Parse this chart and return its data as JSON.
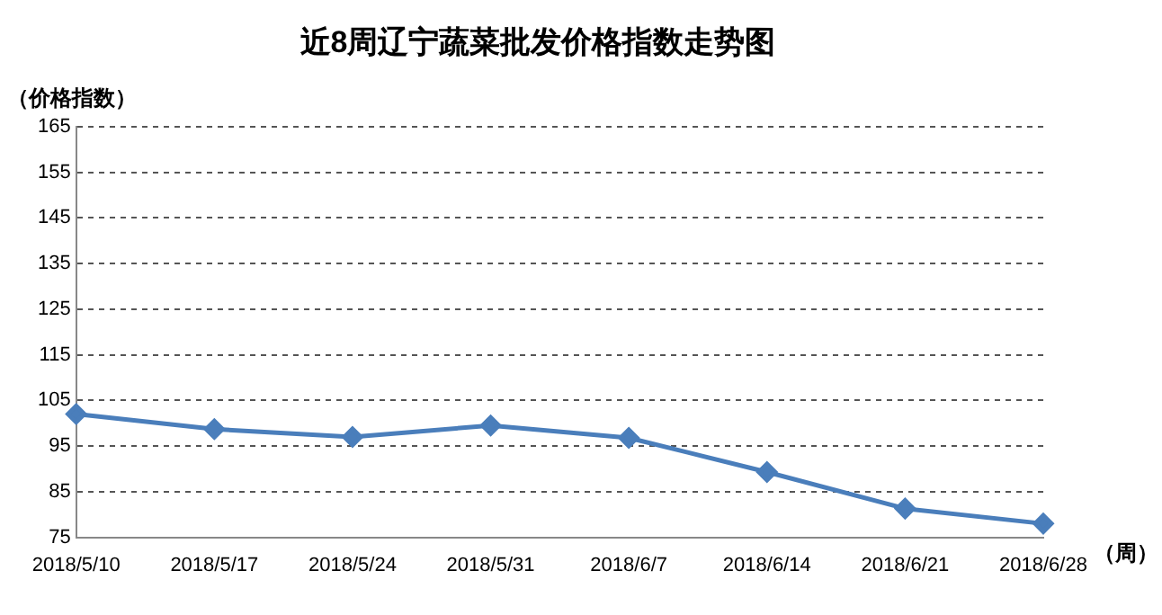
{
  "chart_data": {
    "type": "line",
    "title": "近8周辽宁蔬菜批发价格指数走势图",
    "ylabel": "（价格指数）",
    "xlabel": "（周）",
    "categories": [
      "2018/5/10",
      "2018/5/17",
      "2018/5/24",
      "2018/5/31",
      "2018/6/7",
      "2018/6/14",
      "2018/6/21",
      "2018/6/28"
    ],
    "series": [
      {
        "color": "#4a7ebb",
        "values": [
          102,
          98.7,
          97,
          99.5,
          96.8,
          89.3,
          81.3,
          78
        ]
      }
    ],
    "ylim": [
      75,
      165
    ],
    "yticks": [
      75,
      85,
      95,
      105,
      115,
      125,
      135,
      145,
      155,
      165
    ],
    "grid": "y",
    "legend": false,
    "marker": "diamond",
    "line_style": "solid"
  }
}
